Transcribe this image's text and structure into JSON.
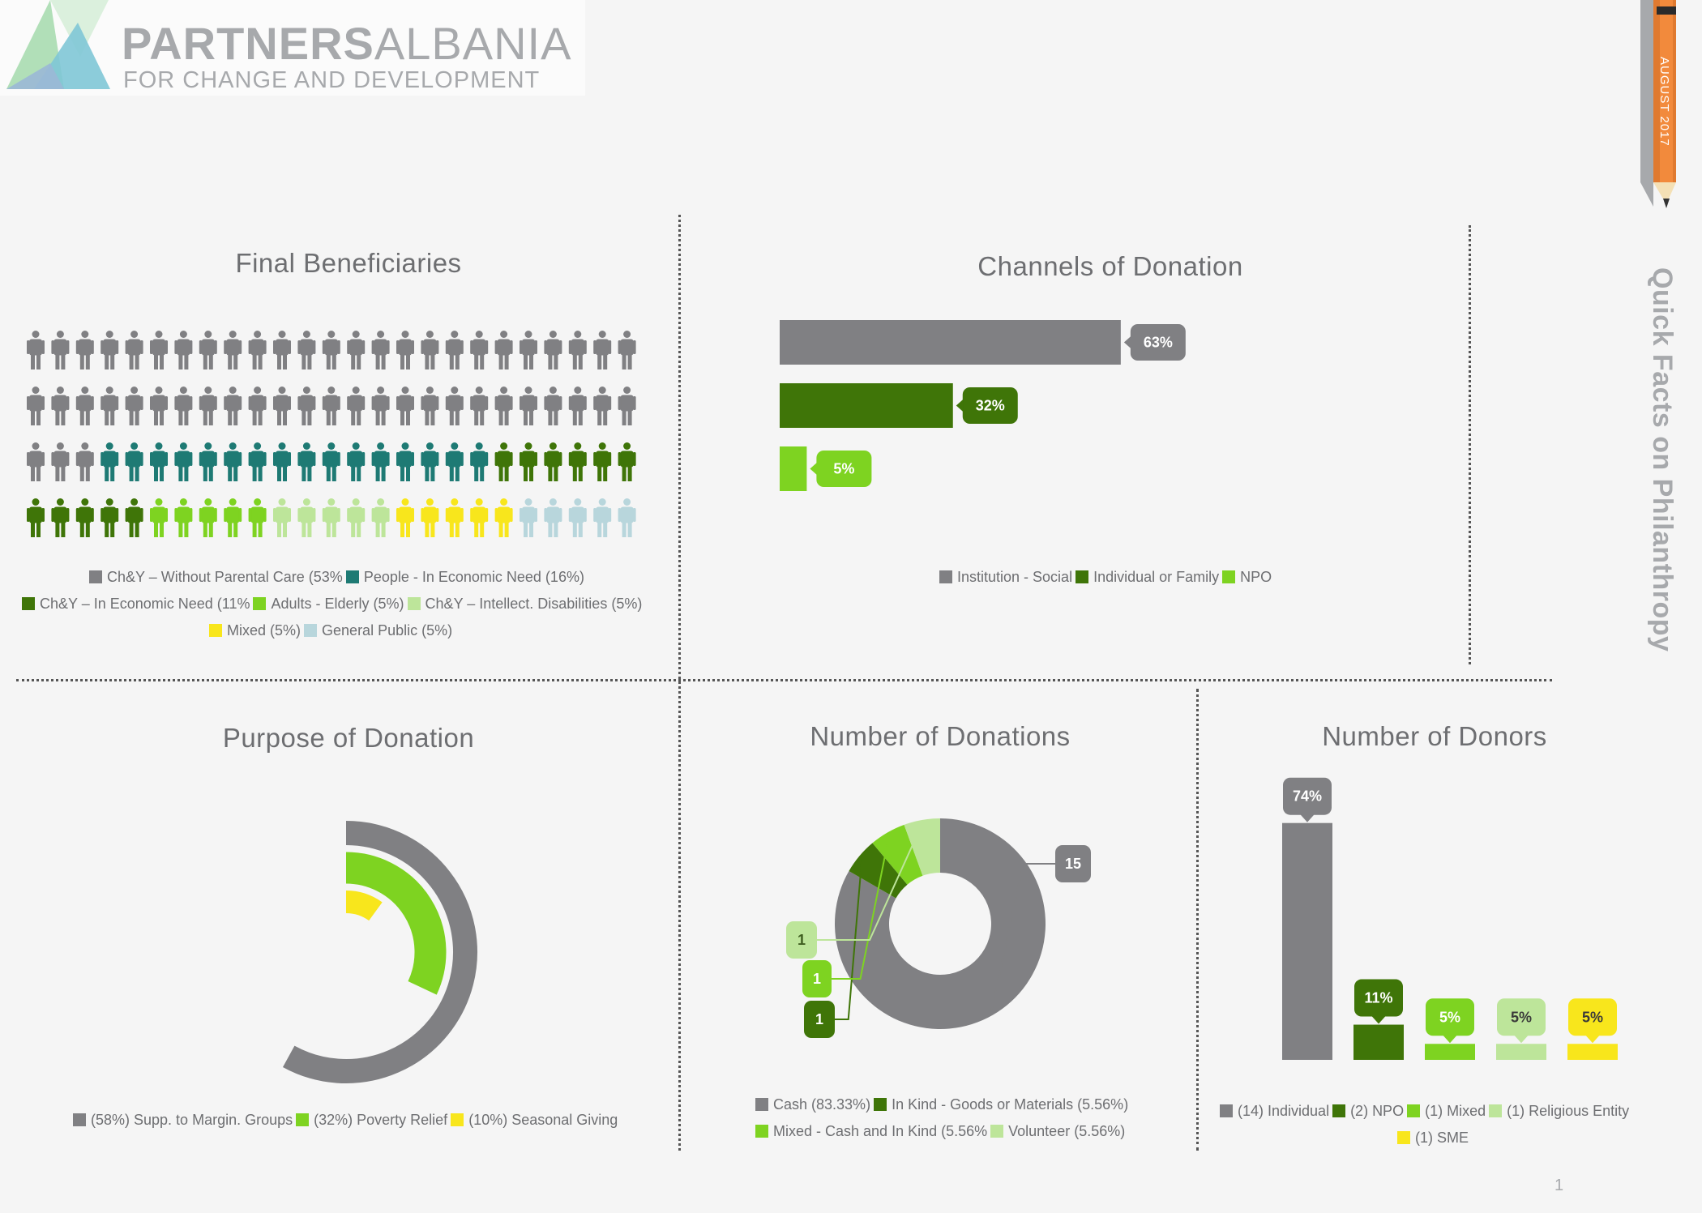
{
  "colors": {
    "gray": "#808083",
    "teal": "#1e7a74",
    "dark_green": "#3f7508",
    "bright_green": "#7ed321",
    "light_green": "#bde59a",
    "yellow": "#f8e61c",
    "light_blue": "#b8d6dc",
    "orange": "#f28a3c"
  },
  "logo": {
    "name_bold": "PARTNERS",
    "name_light": "ALBANIA",
    "tagline": "FOR CHANGE AND DEVELOPMENT"
  },
  "sidebar": {
    "date": "AUGUST 2017",
    "subtitle": "Quick Facts on Philanthropy",
    "page_number": "1"
  },
  "chart_data": [
    {
      "id": "final_beneficiaries",
      "type": "pictogram",
      "title": "Final Beneficiaries",
      "grid": {
        "rows": 4,
        "cols": 25
      },
      "series": [
        {
          "name": "Ch&Y – Without Parental Care (53%",
          "value": 53,
          "color": "gray"
        },
        {
          "name": "People - In Economic Need (16%)",
          "value": 16,
          "color": "teal"
        },
        {
          "name": "Ch&Y – In Economic Need (11%",
          "value": 11,
          "color": "dark_green"
        },
        {
          "name": "Adults - Elderly (5%)",
          "value": 5,
          "color": "bright_green"
        },
        {
          "name": "Ch&Y – Intellect. Disabilities (5%)",
          "value": 5,
          "color": "light_green"
        },
        {
          "name": "Mixed (5%)",
          "value": 5,
          "color": "yellow"
        },
        {
          "name": "General Public (5%)",
          "value": 5,
          "color": "light_blue"
        }
      ]
    },
    {
      "id": "channels_of_donation",
      "type": "bar",
      "orientation": "horizontal",
      "title": "Channels of Donation",
      "categories": [
        "Institution - Social",
        "Individual or Family",
        "NPO"
      ],
      "values": [
        63,
        32,
        5
      ],
      "labels": [
        "63%",
        "32%",
        "5%"
      ],
      "colors": [
        "gray",
        "dark_green",
        "bright_green"
      ],
      "xlim": [
        0,
        100
      ]
    },
    {
      "id": "purpose_of_donation",
      "type": "radial_bar",
      "title": "Purpose of Donation",
      "categories": [
        "(58%) Supp. to Margin. Groups",
        "(32%) Poverty Relief",
        "(10%) Seasonal Giving"
      ],
      "values": [
        58,
        32,
        10
      ],
      "colors": [
        "gray",
        "bright_green",
        "yellow"
      ]
    },
    {
      "id": "number_of_donations",
      "type": "pie",
      "style": "donut",
      "title": "Number of Donations",
      "categories": [
        "Cash (83.33%)",
        "In Kind - Goods or Materials (5.56%)",
        "Mixed - Cash and In Kind (5.56%",
        "Volunteer (5.56%)"
      ],
      "values": [
        15,
        1,
        1,
        1
      ],
      "percents": [
        83.33,
        5.56,
        5.56,
        5.56
      ],
      "labels": [
        "15",
        "1",
        "1",
        "1"
      ],
      "colors": [
        "gray",
        "dark_green",
        "bright_green",
        "light_green"
      ]
    },
    {
      "id": "number_of_donors",
      "type": "bar",
      "orientation": "vertical",
      "title": "Number of Donors",
      "categories": [
        "(14) Individual",
        "(2) NPO",
        "(1) Mixed",
        "(1) Religious Entity",
        "(1) SME"
      ],
      "counts": [
        14,
        2,
        1,
        1,
        1
      ],
      "values": [
        74,
        11,
        5,
        5,
        5
      ],
      "labels": [
        "74%",
        "11%",
        "5%",
        "5%",
        "5%"
      ],
      "colors": [
        "gray",
        "dark_green",
        "bright_green",
        "light_green",
        "yellow"
      ],
      "ylim": [
        0,
        100
      ]
    }
  ]
}
